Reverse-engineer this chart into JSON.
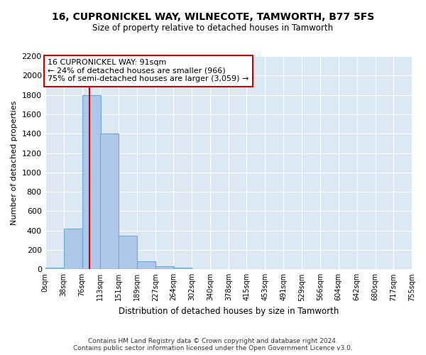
{
  "title": "16, CUPRONICKEL WAY, WILNECOTE, TAMWORTH, B77 5FS",
  "subtitle": "Size of property relative to detached houses in Tamworth",
  "xlabel": "Distribution of detached houses by size in Tamworth",
  "ylabel": "Number of detached properties",
  "bar_color": "#aec6e8",
  "bar_edge_color": "#6aaad4",
  "bg_color": "#dde8f5",
  "grid_color": "#ffffff",
  "annotation_box_color": "#cc0000",
  "annotation_text": "16 CUPRONICKEL WAY: 91sqm\n← 24% of detached houses are smaller (966)\n75% of semi-detached houses are larger (3,059) →",
  "red_line_x": 91,
  "bins": [
    0,
    38,
    76,
    113,
    151,
    189,
    227,
    264,
    302,
    340,
    378,
    415,
    453,
    491,
    529,
    566,
    604,
    642,
    680,
    717,
    755
  ],
  "bin_labels": [
    "0sqm",
    "38sqm",
    "76sqm",
    "113sqm",
    "151sqm",
    "189sqm",
    "227sqm",
    "264sqm",
    "302sqm",
    "340sqm",
    "378sqm",
    "415sqm",
    "453sqm",
    "491sqm",
    "529sqm",
    "566sqm",
    "604sqm",
    "642sqm",
    "680sqm",
    "717sqm",
    "755sqm"
  ],
  "bar_heights": [
    15,
    420,
    1800,
    1400,
    350,
    80,
    32,
    20,
    0,
    0,
    0,
    0,
    0,
    0,
    0,
    0,
    0,
    0,
    0,
    0
  ],
  "ylim": [
    0,
    2200
  ],
  "yticks": [
    0,
    200,
    400,
    600,
    800,
    1000,
    1200,
    1400,
    1600,
    1800,
    2000,
    2200
  ],
  "footer": "Contains HM Land Registry data © Crown copyright and database right 2024.\nContains public sector information licensed under the Open Government Licence v3.0.",
  "fig_bg": "#ffffff"
}
